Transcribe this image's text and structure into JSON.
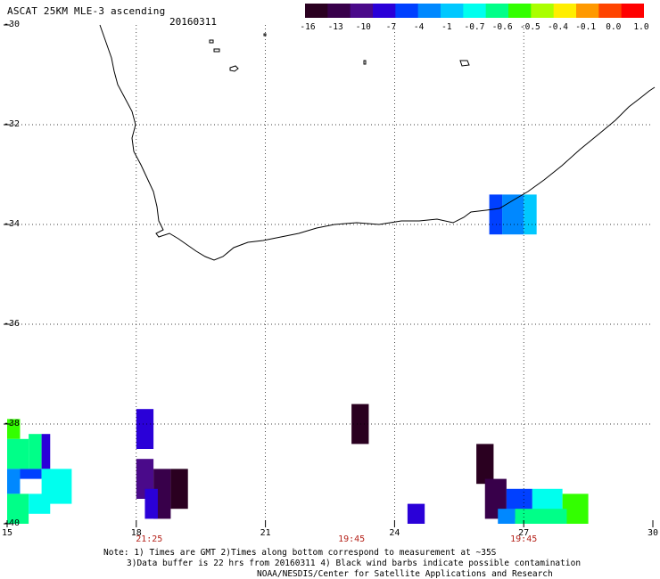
{
  "header": {
    "title": "ASCAT 25KM MLE-3 ascending",
    "date": "20160311"
  },
  "colorbar": {
    "colors": [
      "#2a0020",
      "#38004a",
      "#4a0a8a",
      "#2a00d8",
      "#0040ff",
      "#0088ff",
      "#00c8ff",
      "#00ffee",
      "#00ff88",
      "#33ff00",
      "#aaff00",
      "#ffee00",
      "#ff9900",
      "#ff4400",
      "#ff0000"
    ],
    "tick_labels": [
      "-16",
      "-13",
      "-10",
      "-7",
      "-4",
      "-1",
      "-0.7",
      "-0.6",
      "-0.5",
      "-0.4",
      "-0.1",
      "0.0",
      "1.0"
    ]
  },
  "axes": {
    "lat_labels": [
      "-30",
      "-32",
      "-34",
      "-36",
      "-38",
      "-40"
    ],
    "lon_labels": [
      "15",
      "18",
      "21",
      "24",
      "27",
      "30"
    ],
    "time_labels": [
      "21:25",
      "19:45",
      "19:45"
    ]
  },
  "data_cells": [
    {
      "lon0": 26.2,
      "lon1": 26.5,
      "lat0": -33.4,
      "lat1": -34.2,
      "color": "#0040ff"
    },
    {
      "lon0": 26.5,
      "lon1": 27.0,
      "lat0": -33.4,
      "lat1": -34.2,
      "color": "#0088ff"
    },
    {
      "lon0": 27.0,
      "lon1": 27.3,
      "lat0": -33.4,
      "lat1": -34.2,
      "color": "#00c8ff"
    },
    {
      "lon0": 23.0,
      "lon1": 23.4,
      "lat0": -37.6,
      "lat1": -38.4,
      "color": "#2a0020"
    },
    {
      "lon0": 18.0,
      "lon1": 18.4,
      "lat0": -37.7,
      "lat1": -38.5,
      "color": "#2a00d8"
    },
    {
      "lon0": 18.0,
      "lon1": 18.4,
      "lat0": -38.7,
      "lat1": -39.5,
      "color": "#4a0a8a"
    },
    {
      "lon0": 18.4,
      "lon1": 18.8,
      "lat0": -38.9,
      "lat1": -39.9,
      "color": "#38004a"
    },
    {
      "lon0": 18.2,
      "lon1": 18.5,
      "lat0": -39.3,
      "lat1": -39.9,
      "color": "#2a00d8"
    },
    {
      "lon0": 18.8,
      "lon1": 19.2,
      "lat0": -38.9,
      "lat1": -39.7,
      "color": "#2a0020"
    },
    {
      "lon0": 15.0,
      "lon1": 15.3,
      "lat0": -37.9,
      "lat1": -38.3,
      "color": "#33ff00"
    },
    {
      "lon0": 15.0,
      "lon1": 15.5,
      "lat0": -38.3,
      "lat1": -38.9,
      "color": "#00ff88"
    },
    {
      "lon0": 15.5,
      "lon1": 15.8,
      "lat0": -38.2,
      "lat1": -38.9,
      "color": "#00ff88"
    },
    {
      "lon0": 15.8,
      "lon1": 16.0,
      "lat0": -38.2,
      "lat1": -38.9,
      "color": "#2a00d8"
    },
    {
      "lon0": 15.0,
      "lon1": 15.3,
      "lat0": -38.9,
      "lat1": -39.4,
      "color": "#0088ff"
    },
    {
      "lon0": 15.3,
      "lon1": 15.8,
      "lat0": -38.9,
      "lat1": -39.1,
      "color": "#0040ff"
    },
    {
      "lon0": 15.8,
      "lon1": 16.5,
      "lat0": -38.9,
      "lat1": -39.6,
      "color": "#00ffee"
    },
    {
      "lon0": 15.0,
      "lon1": 15.5,
      "lat0": -39.4,
      "lat1": -40.0,
      "color": "#00ff88"
    },
    {
      "lon0": 15.5,
      "lon1": 16.0,
      "lat0": -39.4,
      "lat1": -39.8,
      "color": "#00ffee"
    },
    {
      "lon0": 24.3,
      "lon1": 24.7,
      "lat0": -39.6,
      "lat1": -40.0,
      "color": "#2a00d8"
    },
    {
      "lon0": 25.9,
      "lon1": 26.3,
      "lat0": -38.4,
      "lat1": -39.2,
      "color": "#2a0020"
    },
    {
      "lon0": 26.1,
      "lon1": 26.6,
      "lat0": -39.1,
      "lat1": -39.9,
      "color": "#38004a"
    },
    {
      "lon0": 26.6,
      "lon1": 27.2,
      "lat0": -39.3,
      "lat1": -39.9,
      "color": "#0040ff"
    },
    {
      "lon0": 27.2,
      "lon1": 27.9,
      "lat0": -39.3,
      "lat1": -39.9,
      "color": "#00ffee"
    },
    {
      "lon0": 27.9,
      "lon1": 28.5,
      "lat0": -39.4,
      "lat1": -40.0,
      "color": "#33ff00"
    },
    {
      "lon0": 26.4,
      "lon1": 26.8,
      "lat0": -39.7,
      "lat1": -40.0,
      "color": "#0088ff"
    },
    {
      "lon0": 26.8,
      "lon1": 27.4,
      "lat0": -39.7,
      "lat1": -40.0,
      "color": "#00ff88"
    },
    {
      "lon0": 27.4,
      "lon1": 28.0,
      "lat0": -39.7,
      "lat1": -40.0,
      "color": "#00ff88"
    }
  ],
  "notes": {
    "line1": "Note: 1) Times are GMT 2)Times along bottom correspond to measurement at ~35S",
    "line2": "3)Data buffer is 22 hrs from 20160311 4) Black wind barbs indicate possible contamination",
    "line3": "NOAA/NESDIS/Center for Satellite Applications and Research"
  }
}
